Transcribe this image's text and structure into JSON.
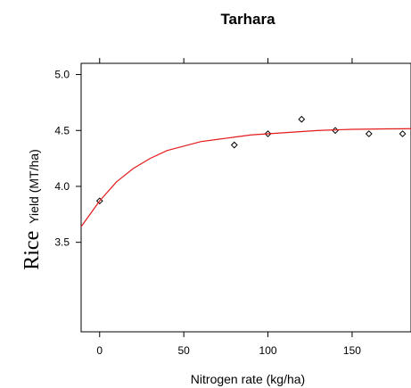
{
  "chart_data": {
    "type": "scatter",
    "title": "Tarhara",
    "xlabel": "Nitrogen rate (kg/ha)",
    "ylabel_prefix": "Rice",
    "ylabel": "Yield (MT/ha)",
    "xlim": [
      -11,
      185
    ],
    "ylim": [
      2.7,
      5.1
    ],
    "xticks": [
      0,
      50,
      100,
      150
    ],
    "yticks": [
      3.5,
      4.0,
      4.5,
      5.0
    ],
    "ytick_labels": [
      "3.5",
      "4.0",
      "4.5",
      "5.0"
    ],
    "series": [
      {
        "kind": "points",
        "marker": "diamond",
        "color": "#000000",
        "x": [
          0,
          80,
          100,
          120,
          140,
          160,
          180
        ],
        "y": [
          3.87,
          4.37,
          4.47,
          4.6,
          4.5,
          4.47,
          4.47
        ]
      },
      {
        "kind": "fit-curve",
        "color": "#e31a1c",
        "x": [
          -11,
          0,
          10,
          20,
          30,
          40,
          50,
          60,
          70,
          80,
          90,
          100,
          110,
          120,
          130,
          140,
          150,
          160,
          170,
          180,
          185
        ],
        "y": [
          3.64,
          3.87,
          4.04,
          4.16,
          4.25,
          4.32,
          4.36,
          4.4,
          4.42,
          4.44,
          4.46,
          4.47,
          4.48,
          4.49,
          4.5,
          4.505,
          4.51,
          4.512,
          4.514,
          4.515,
          4.516
        ]
      }
    ]
  }
}
